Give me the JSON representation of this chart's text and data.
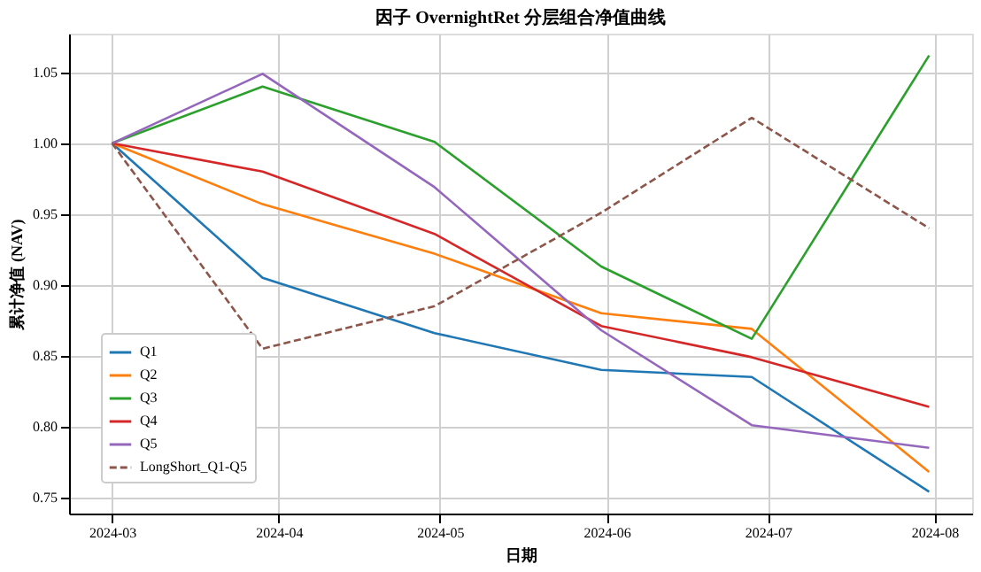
{
  "chart_data": {
    "type": "line",
    "title": "因子 OvernightRet 分层组合净值曲线",
    "xlabel": "日期",
    "ylabel": "累计净值 (NAV)",
    "x": [
      "2024-03-01",
      "2024-03-29",
      "2024-04-30",
      "2024-05-31",
      "2024-06-28",
      "2024-07-31"
    ],
    "series": [
      {
        "name": "Q1",
        "color": "#1f77b4",
        "values": [
          1.0,
          0.905,
          0.866,
          0.84,
          0.835,
          0.754
        ]
      },
      {
        "name": "Q2",
        "color": "#ff7f0e",
        "values": [
          1.0,
          0.957,
          0.922,
          0.88,
          0.869,
          0.768
        ]
      },
      {
        "name": "Q3",
        "color": "#2ca02c",
        "values": [
          1.0,
          1.04,
          1.001,
          0.913,
          0.862,
          1.062
        ]
      },
      {
        "name": "Q4",
        "color": "#d62728",
        "values": [
          1.0,
          0.98,
          0.936,
          0.871,
          0.849,
          0.814
        ]
      },
      {
        "name": "Q5",
        "color": "#9467bd",
        "values": [
          1.0,
          1.049,
          0.969,
          0.868,
          0.801,
          0.785
        ]
      },
      {
        "name": "LongShort_Q1-Q5",
        "color": "#8c564b",
        "line_style": "dashed",
        "values": [
          1.0,
          0.855,
          0.885,
          0.951,
          1.018,
          0.94
        ]
      }
    ],
    "xlim": [
      "2024-02-22",
      "2024-08-08"
    ],
    "xticks": [
      "2024-03",
      "2024-04",
      "2024-05",
      "2024-06",
      "2024-07",
      "2024-08"
    ],
    "ylim": [
      0.7386,
      1.0774
    ],
    "yticks": [
      {
        "value": 0.75,
        "label": "0.75"
      },
      {
        "value": 0.8,
        "label": "0.80"
      },
      {
        "value": 0.85,
        "label": "0.85"
      },
      {
        "value": 0.9,
        "label": "0.90"
      },
      {
        "value": 0.95,
        "label": "0.95"
      },
      {
        "value": 1.0,
        "label": "1.00"
      },
      {
        "value": 1.05,
        "label": "1.05"
      }
    ],
    "grid": true,
    "legend": "bottom left",
    "marker": "none",
    "line_style": "solid"
  }
}
